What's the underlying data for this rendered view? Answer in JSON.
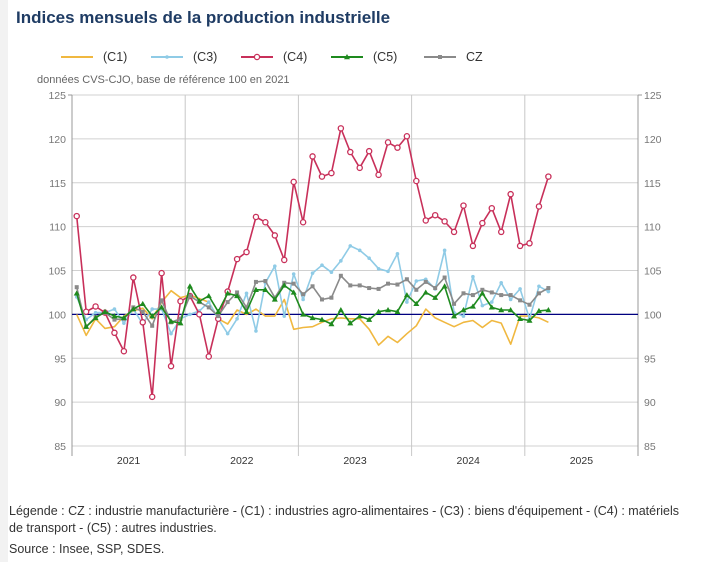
{
  "title": "Indices mensuels de la production industrielle",
  "subtitle": "données CVS-CJO, base de référence 100 en 2021",
  "footer": {
    "legend_note": "Légende : CZ : industrie manufacturière - (C1) : industries agro-alimentaires - (C3) : biens d'équipement - (C4) : matériels de transport - (C5) : autres industries.",
    "source": "Source : Insee, SSP, SDES."
  },
  "chart_data": {
    "type": "line",
    "title": "Indices mensuels de la production industrielle",
    "xlabel": "",
    "ylabel": "",
    "x_start": "2021-01",
    "x_frequency": "monthly",
    "x_ticks": [
      "2021",
      "2022",
      "2023",
      "2024",
      "2025"
    ],
    "xlim": [
      "2021-01",
      "2025-12"
    ],
    "ylim": [
      85,
      125
    ],
    "y_ticks": [
      85,
      90,
      95,
      100,
      105,
      110,
      115,
      120,
      125
    ],
    "y_axis_both_sides": true,
    "reference_line": {
      "value": 100,
      "color": "#000080"
    },
    "grid": true,
    "legend_position": "top",
    "series": [
      {
        "name": "(C1)",
        "color": "#f0b840",
        "marker": "none",
        "values": [
          100.0,
          97.6,
          99.5,
          98.4,
          98.6,
          99.8,
          100.4,
          100.7,
          99.5,
          101.4,
          102.7,
          101.9,
          102.2,
          101.8,
          101.4,
          99.5,
          98.9,
          100.5,
          100.0,
          100.6,
          99.8,
          99.8,
          101.7,
          98.3,
          98.5,
          98.6,
          99.1,
          99.5,
          99.6,
          99.5,
          99.5,
          98.3,
          96.5,
          97.5,
          96.8,
          97.8,
          98.7,
          100.6,
          99.6,
          99.1,
          98.6,
          99.1,
          99.3,
          98.5,
          99.3,
          99.0,
          96.6,
          99.8,
          99.8,
          99.6,
          99.1
        ]
      },
      {
        "name": "(C3)",
        "color": "#8fcbe6",
        "marker": "dot",
        "values": [
          102.0,
          99.4,
          100.2,
          100.2,
          100.6,
          99.0,
          100.6,
          98.9,
          100.6,
          100.6,
          97.8,
          99.5,
          100.0,
          100.4,
          101.4,
          99.5,
          97.8,
          99.5,
          102.4,
          98.1,
          103.6,
          105.5,
          99.8,
          104.6,
          101.7,
          104.7,
          105.6,
          104.8,
          106.1,
          107.8,
          107.3,
          106.4,
          105.2,
          104.9,
          106.9,
          101.4,
          103.8,
          104.0,
          102.9,
          107.3,
          100.2,
          99.8,
          104.3,
          101.0,
          101.4,
          103.6,
          101.7,
          102.9,
          99.5,
          103.2,
          102.6
        ]
      },
      {
        "name": "(C4)",
        "color": "#c8305a",
        "marker": "open-circle",
        "values": [
          111.2,
          100.3,
          100.9,
          100.2,
          97.9,
          95.8,
          104.2,
          99.1,
          90.6,
          104.7,
          94.1,
          101.5,
          102.1,
          100.0,
          95.2,
          99.5,
          102.6,
          106.3,
          107.1,
          111.1,
          110.5,
          109.0,
          106.2,
          115.1,
          110.5,
          118.0,
          115.7,
          116.1,
          121.2,
          118.5,
          116.7,
          118.6,
          115.9,
          119.6,
          119.0,
          120.3,
          115.2,
          110.7,
          111.3,
          110.6,
          109.4,
          112.4,
          107.8,
          110.4,
          112.1,
          109.4,
          113.7,
          107.8,
          108.1,
          112.3,
          115.7
        ]
      },
      {
        "name": "(C5)",
        "color": "#1e8a1e",
        "marker": "triangle",
        "values": [
          102.4,
          98.6,
          99.6,
          100.3,
          99.8,
          99.6,
          100.6,
          101.2,
          99.8,
          100.8,
          99.2,
          99.0,
          103.2,
          101.5,
          102.1,
          100.3,
          102.4,
          102.1,
          100.3,
          102.8,
          102.8,
          101.7,
          103.3,
          102.5,
          100.0,
          99.6,
          99.4,
          98.9,
          100.5,
          99.0,
          99.8,
          99.4,
          100.3,
          100.5,
          100.3,
          102.2,
          101.2,
          102.5,
          101.9,
          103.2,
          99.8,
          100.5,
          100.9,
          102.4,
          100.8,
          100.5,
          100.5,
          99.5,
          99.3,
          100.4,
          100.5
        ]
      },
      {
        "name": "CZ",
        "color": "#8a8a8a",
        "marker": "square",
        "values": [
          103.1,
          98.6,
          99.7,
          100.2,
          99.4,
          99.5,
          100.8,
          100.3,
          98.7,
          101.6,
          99.1,
          99.5,
          102.1,
          101.4,
          100.8,
          99.8,
          101.4,
          102.5,
          100.8,
          103.7,
          103.8,
          101.9,
          103.6,
          103.5,
          102.3,
          103.2,
          101.7,
          101.9,
          104.4,
          103.3,
          103.3,
          103.0,
          102.9,
          103.5,
          103.4,
          104.0,
          102.8,
          103.7,
          103.0,
          104.2,
          101.2,
          102.4,
          102.2,
          102.8,
          102.5,
          102.2,
          102.2,
          101.6,
          101.1,
          102.4,
          103.0
        ]
      }
    ]
  }
}
